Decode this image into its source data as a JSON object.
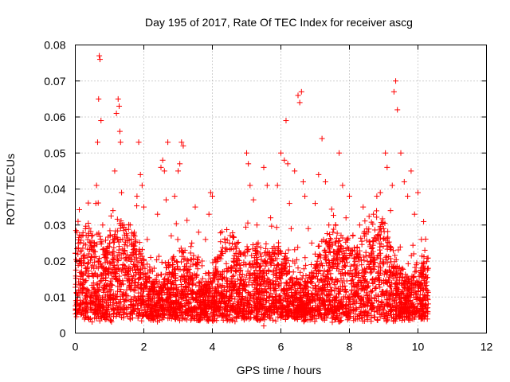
{
  "chart_data": {
    "type": "scatter",
    "title": "Day 195 of 2017, Rate Of TEC Index for receiver ascg",
    "xlabel": "GPS time / hours",
    "ylabel": "ROTI / TECUs",
    "xlim": [
      0,
      12
    ],
    "ylim": [
      0,
      0.08
    ],
    "xticks": [
      0,
      2,
      4,
      6,
      8,
      10,
      12
    ],
    "yticks": [
      0,
      0.01,
      0.02,
      0.03,
      0.04,
      0.05,
      0.06,
      0.07,
      0.08
    ],
    "xtick_labels": [
      "0",
      "2",
      "4",
      "6",
      "8",
      "10",
      "12"
    ],
    "ytick_labels": [
      "0",
      "0.01",
      "0.02",
      "0.03",
      "0.04",
      "0.05",
      "0.06",
      "0.07",
      "0.08"
    ],
    "grid": true,
    "marker": "+",
    "color": "#ff0000",
    "series": [
      {
        "name": "ROTI",
        "x": [
          0.02,
          0.05,
          0.08,
          0.1,
          0.12,
          0.15,
          0.2,
          0.25,
          0.3,
          0.35,
          0.4,
          0.45,
          0.5,
          0.55,
          0.6,
          0.62,
          0.65,
          0.68,
          0.7,
          0.72,
          0.75,
          0.8,
          0.85,
          0.9,
          0.95,
          1.0,
          1.05,
          1.1,
          1.15,
          1.2,
          1.25,
          1.28,
          1.3,
          1.32,
          1.35,
          1.4,
          1.45,
          1.5,
          1.6,
          1.7,
          1.8,
          1.85,
          1.9,
          1.95,
          2.0,
          2.1,
          2.2,
          2.3,
          2.4,
          2.5,
          2.55,
          2.6,
          2.65,
          2.7,
          2.8,
          2.85,
          2.9,
          3.0,
          3.05,
          3.1,
          3.15,
          3.2,
          3.3,
          3.4,
          3.5,
          3.6,
          3.7,
          3.8,
          3.9,
          3.95,
          4.0,
          4.05,
          4.1,
          4.2,
          4.3,
          4.4,
          4.5,
          4.6,
          4.7,
          4.8,
          4.9,
          5.0,
          5.05,
          5.1,
          5.2,
          5.3,
          5.4,
          5.5,
          5.6,
          5.7,
          5.8,
          5.9,
          6.0,
          6.1,
          6.15,
          6.2,
          6.25,
          6.3,
          6.35,
          6.4,
          6.5,
          6.55,
          6.6,
          6.65,
          6.7,
          6.8,
          6.9,
          7.0,
          7.1,
          7.2,
          7.3,
          7.4,
          7.5,
          7.6,
          7.7,
          7.8,
          7.9,
          8.0,
          8.1,
          8.2,
          8.3,
          8.4,
          8.5,
          8.6,
          8.7,
          8.8,
          8.9,
          9.0,
          9.05,
          9.1,
          9.2,
          9.25,
          9.3,
          9.35,
          9.4,
          9.5,
          9.6,
          9.7,
          9.8,
          9.9,
          10.0,
          10.1,
          10.2,
          10.25,
          0.3,
          0.7,
          1.3,
          2.2,
          3.2,
          4.5,
          5.5,
          6.4,
          7.5,
          8.3,
          9.3,
          10.1
        ],
        "y": [
          0.009,
          0.028,
          0.031,
          0.012,
          0.02,
          0.015,
          0.011,
          0.014,
          0.018,
          0.01,
          0.022,
          0.009,
          0.016,
          0.024,
          0.036,
          0.041,
          0.053,
          0.065,
          0.077,
          0.076,
          0.059,
          0.03,
          0.021,
          0.013,
          0.017,
          0.025,
          0.012,
          0.034,
          0.045,
          0.061,
          0.065,
          0.063,
          0.056,
          0.053,
          0.039,
          0.022,
          0.016,
          0.012,
          0.03,
          0.019,
          0.038,
          0.053,
          0.044,
          0.041,
          0.035,
          0.026,
          0.021,
          0.018,
          0.033,
          0.046,
          0.048,
          0.045,
          0.037,
          0.053,
          0.027,
          0.019,
          0.038,
          0.045,
          0.047,
          0.053,
          0.052,
          0.023,
          0.015,
          0.025,
          0.035,
          0.028,
          0.02,
          0.026,
          0.033,
          0.039,
          0.038,
          0.016,
          0.012,
          0.021,
          0.017,
          0.01,
          0.025,
          0.014,
          0.011,
          0.018,
          0.022,
          0.05,
          0.047,
          0.041,
          0.037,
          0.03,
          0.022,
          0.046,
          0.041,
          0.032,
          0.024,
          0.041,
          0.05,
          0.048,
          0.059,
          0.047,
          0.036,
          0.029,
          0.02,
          0.045,
          0.066,
          0.064,
          0.067,
          0.042,
          0.038,
          0.029,
          0.025,
          0.036,
          0.044,
          0.054,
          0.042,
          0.03,
          0.018,
          0.025,
          0.05,
          0.041,
          0.032,
          0.038,
          0.027,
          0.021,
          0.03,
          0.035,
          0.018,
          0.024,
          0.033,
          0.038,
          0.039,
          0.029,
          0.05,
          0.046,
          0.034,
          0.041,
          0.067,
          0.07,
          0.062,
          0.05,
          0.042,
          0.038,
          0.045,
          0.033,
          0.039,
          0.026,
          0.023,
          0.012,
          0.006,
          0.008,
          0.005,
          0.004,
          0.004,
          0.005,
          0.002,
          0.004,
          0.003,
          0.004,
          0.004,
          0.005
        ]
      }
    ]
  }
}
